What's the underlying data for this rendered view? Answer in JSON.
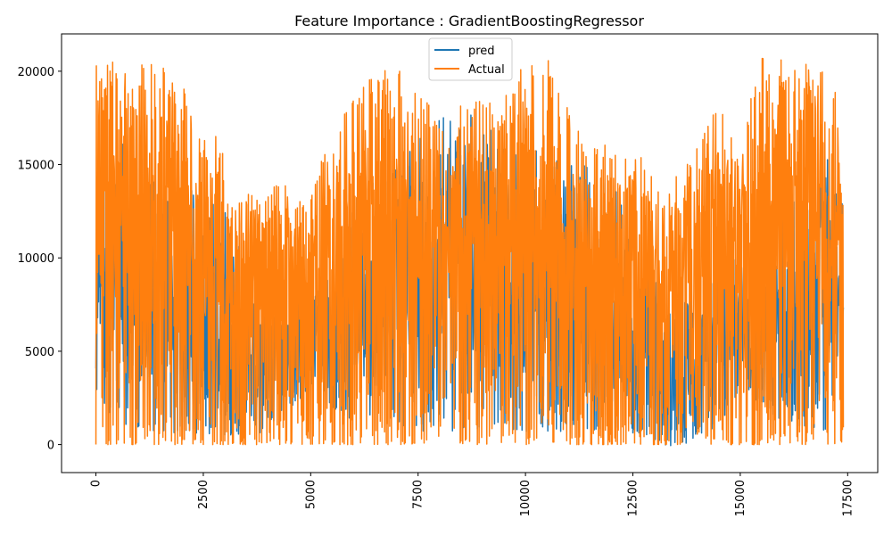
{
  "chart_data": {
    "type": "line",
    "title": "Feature Importance : GradientBoostingRegressor",
    "xlabel": "",
    "ylabel": "",
    "xlim": [
      -800,
      18200
    ],
    "ylim": [
      -1500,
      22000
    ],
    "x_ticks": [
      0,
      2500,
      5000,
      7500,
      10000,
      12500,
      15000,
      17500
    ],
    "x_tick_labels": [
      "0",
      "2500",
      "5000",
      "7500",
      "10000",
      "12500",
      "15000",
      "17500"
    ],
    "y_ticks": [
      0,
      5000,
      10000,
      15000,
      20000
    ],
    "y_tick_labels": [
      "0",
      "5000",
      "10000",
      "15000",
      "20000"
    ],
    "x_tick_rotation": 90,
    "legend_position": "upper-center",
    "n_points": 17400,
    "series": [
      {
        "name": "pred",
        "color": "#1f77b4",
        "envelope_x": [
          0,
          500,
          1000,
          2000,
          3000,
          3800,
          4300,
          4800,
          5100,
          5500,
          6000,
          7000,
          8000,
          8700,
          9500,
          10000,
          11000,
          12000,
          12800,
          13300,
          13500,
          14000,
          14500,
          15000,
          15300,
          16000,
          17000,
          17400
        ],
        "envelope_low": [
          2500,
          1000,
          800,
          600,
          500,
          600,
          1500,
          2500,
          3500,
          2000,
          1200,
          800,
          600,
          800,
          900,
          700,
          700,
          700,
          500,
          -200,
          -400,
          500,
          1000,
          3000,
          2500,
          1200,
          700,
          3000
        ],
        "envelope_high": [
          16500,
          17000,
          15000,
          14000,
          12500,
          9000,
          8000,
          9000,
          8200,
          10500,
          13500,
          15000,
          18000,
          18000,
          16500,
          16500,
          15500,
          14000,
          11500,
          9000,
          8500,
          9000,
          10500,
          10000,
          7000,
          13000,
          15500,
          13500
        ]
      },
      {
        "name": "Actual",
        "color": "#ff7f0e",
        "envelope_x": [
          0,
          400,
          800,
          1300,
          1800,
          2300,
          2900,
          3300,
          3800,
          4300,
          4800,
          5200,
          5600,
          6200,
          7000,
          7800,
          8300,
          9000,
          9500,
          10000,
          10500,
          11000,
          11600,
          12200,
          12700,
          13200,
          13600,
          14000,
          14500,
          15000,
          15400,
          15800,
          16300,
          16800,
          17400
        ],
        "envelope_low": [
          0,
          0,
          0,
          0,
          0,
          0,
          0,
          0,
          0,
          0,
          0,
          0,
          0,
          0,
          0,
          0,
          0,
          0,
          0,
          0,
          0,
          0,
          0,
          0,
          0,
          0,
          0,
          0,
          0,
          0,
          0,
          0,
          0,
          0,
          0
        ],
        "envelope_high": [
          20500,
          20500,
          20300,
          20500,
          20500,
          18000,
          16200,
          13500,
          13500,
          14500,
          13000,
          15000,
          17000,
          19500,
          20300,
          18500,
          18000,
          18500,
          18500,
          20900,
          20900,
          18000,
          16500,
          15500,
          15500,
          13500,
          15500,
          16000,
          18500,
          15000,
          20700,
          20700,
          20600,
          20900,
          18500
        ]
      }
    ]
  }
}
